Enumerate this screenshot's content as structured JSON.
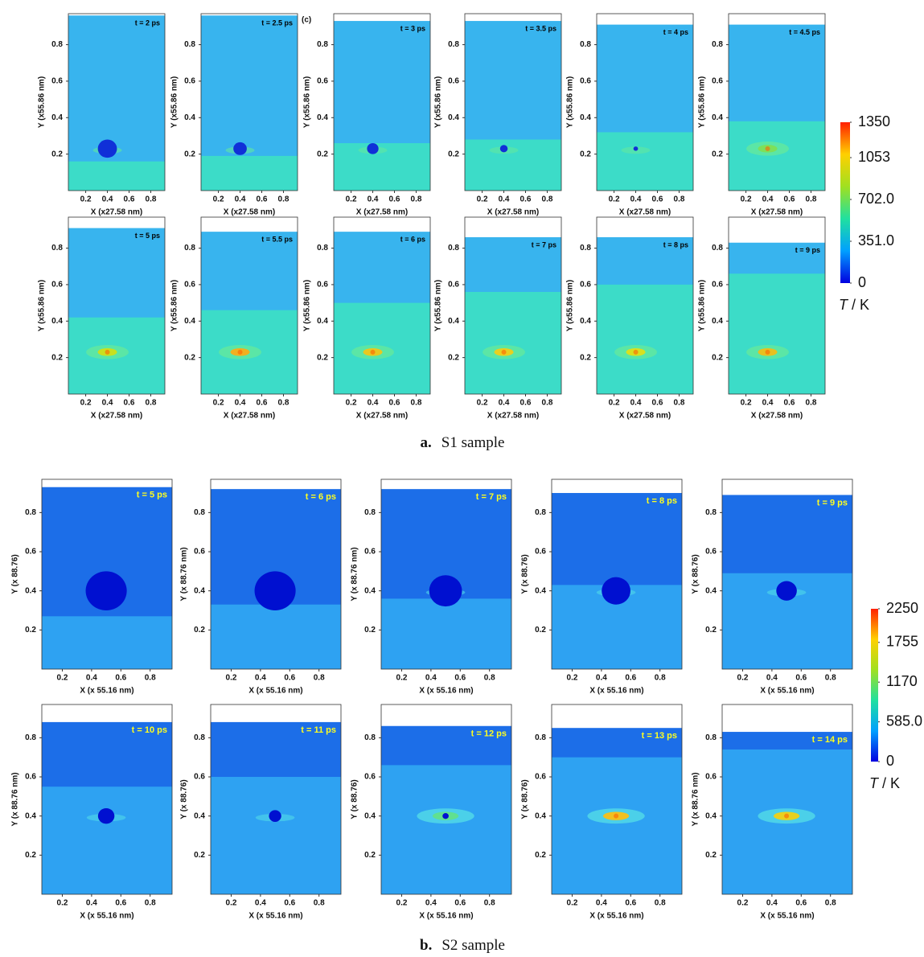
{
  "figures": [
    {
      "label": "a.",
      "name": "S1 sample",
      "xlim": [
        0.04,
        0.93
      ],
      "ylim": [
        0,
        0.97
      ],
      "xticks": [
        0.2,
        0.4,
        0.6,
        0.8
      ],
      "yticks": [
        0.2,
        0.4,
        0.6,
        0.8
      ],
      "center": [
        0.4,
        0.23
      ],
      "time_color": "#000000",
      "colors": {
        "upper": "#38b4ee",
        "lower": "#3cdcc8",
        "void": "#1030d8",
        "halo": "#60e8a0"
      },
      "colorbar": {
        "colors": [
          "#0000e0",
          "#00a0ff",
          "#20e0a0",
          "#a0e020",
          "#ffd000",
          "#ff2000"
        ],
        "clim": [
          0,
          1350
        ],
        "ticks": [
          0,
          {
            "value": 351,
            "label": "351.0"
          },
          {
            "value": 702,
            "label": "702.0"
          },
          1053,
          1350
        ],
        "symbol": "T",
        "unit": " / K"
      },
      "panels": [
        {
          "time": "t = 2 ps",
          "xlabel": "X (x27.58 nm)",
          "ylabel": "Y (x55.86 nm)",
          "top": 0.96,
          "front": 0.16,
          "void": 0.05,
          "hot": null
        },
        {
          "time": "t = 2.5 ps",
          "tag": "(c)",
          "xlabel": "X (x27.58 nm)",
          "ylabel": "Y (x55.86 nm)",
          "top": 0.96,
          "front": 0.19,
          "void": 0.035,
          "hot": null
        },
        {
          "time": "t = 3 ps",
          "xlabel": "X (x27.58 nm)",
          "ylabel": "Y (x55.86 nm)",
          "top": 0.93,
          "front": 0.26,
          "void": 0.03,
          "hot": null
        },
        {
          "time": "t = 3.5 ps",
          "xlabel": "X (x27.58 nm)",
          "ylabel": "Y (x55.86 nm)",
          "top": 0.93,
          "front": 0.28,
          "void": 0.02,
          "hot": null
        },
        {
          "time": "t = 4 ps",
          "xlabel": "X (x27.58 nm)",
          "ylabel": "Y (x55.86 nm)",
          "top": 0.91,
          "front": 0.32,
          "void": 0.012,
          "hot": null
        },
        {
          "time": "t = 4.5 ps",
          "xlabel": "X (x27.58 nm)",
          "ylabel": "Y (x55.86 nm)",
          "top": 0.91,
          "front": 0.38,
          "void": 0,
          "hot": "#7de05a"
        },
        {
          "time": "t = 5 ps",
          "xlabel": "X (x27.58 nm)",
          "ylabel": "Y (x55.86 nm)",
          "top": 0.91,
          "front": 0.42,
          "void": 0,
          "hot": "#c8e020"
        },
        {
          "time": "t = 5.5 ps",
          "xlabel": "X (x27.58 nm)",
          "ylabel": "Y (x55.86 nm)",
          "top": 0.89,
          "front": 0.46,
          "void": 0,
          "hot": "#f0b020"
        },
        {
          "time": "t = 6 ps",
          "xlabel": "X (x27.58 nm)",
          "ylabel": "Y (x55.86 nm)",
          "top": 0.89,
          "front": 0.5,
          "void": 0,
          "hot": "#e8c820"
        },
        {
          "time": "t = 7 ps",
          "xlabel": "X (x27.58 nm)",
          "ylabel": "Y (x55.86 nm)",
          "top": 0.86,
          "front": 0.56,
          "void": 0,
          "hot": "#e8d020"
        },
        {
          "time": "t = 8 ps",
          "xlabel": "X (x27.58 nm)",
          "ylabel": "Y (x55.86 nm)",
          "top": 0.86,
          "front": 0.6,
          "void": 0,
          "hot": "#d8e020"
        },
        {
          "time": "t = 9 ps",
          "xlabel": "X (x27.58 nm)",
          "ylabel": "Y (x55.86 nm)",
          "top": 0.83,
          "front": 0.66,
          "void": 0,
          "hot": "#e8c020"
        }
      ]
    },
    {
      "label": "b.",
      "name": "S2 sample",
      "xlim": [
        0.06,
        0.95
      ],
      "ylim": [
        0,
        0.97
      ],
      "xticks": [
        0.2,
        0.4,
        0.6,
        0.8
      ],
      "yticks": [
        0.2,
        0.4,
        0.6,
        0.8
      ],
      "center": [
        0.5,
        0.4
      ],
      "time_color": "#ffff20",
      "colors": {
        "upper": "#1c6ee8",
        "lower": "#2ea2f2",
        "void": "#0010d0",
        "halo": "#50d8e8"
      },
      "colorbar": {
        "colors": [
          "#0000e0",
          "#00a0ff",
          "#20e0a0",
          "#a0e020",
          "#ffd000",
          "#ff2000"
        ],
        "clim": [
          0,
          2250
        ],
        "ticks": [
          0,
          {
            "value": 585,
            "label": "585.0"
          },
          1170,
          1755,
          2250
        ],
        "symbol": "T",
        "unit": " / K"
      },
      "panels": [
        {
          "time": "t = 5 ps",
          "xlabel": "X (x 55.16 nm)",
          "ylabel": "Y (x 88.76)",
          "top": 0.93,
          "front": 0.27,
          "void": 0.1,
          "hot": null
        },
        {
          "time": "t = 6 ps",
          "xlabel": "X (x 55.16 nm)",
          "ylabel": "Y (x 88.76 nm)",
          "top": 0.92,
          "front": 0.33,
          "void": 0.1,
          "hot": null
        },
        {
          "time": "t = 7 ps",
          "xlabel": "X (x 55.16 nm)",
          "ylabel": "Y (x 88.76 nm)",
          "top": 0.92,
          "front": 0.36,
          "void": 0.08,
          "hot": null
        },
        {
          "time": "t = 8 ps",
          "xlabel": "X (x 55.16 nm)",
          "ylabel": "Y (x 88.76)",
          "top": 0.9,
          "front": 0.43,
          "void": 0.07,
          "hot": null
        },
        {
          "time": "t = 9 ps",
          "xlabel": "X (x 55.16 nm)",
          "ylabel": "Y (x 88.76)",
          "top": 0.89,
          "front": 0.49,
          "void": 0.05,
          "hot": null
        },
        {
          "time": "t = 10 ps",
          "xlabel": "X (x 55.16 nm)",
          "ylabel": "Y (x 88.76 nm)",
          "top": 0.88,
          "front": 0.55,
          "void": 0.04,
          "hot": null
        },
        {
          "time": "t = 11 ps",
          "xlabel": "X (x 55.16 nm)",
          "ylabel": "Y (x 88.76)",
          "top": 0.88,
          "front": 0.6,
          "void": 0.03,
          "hot": null
        },
        {
          "time": "t = 12 ps",
          "xlabel": "X (x 55.16 nm)",
          "ylabel": "Y (x 88.76)",
          "top": 0.86,
          "front": 0.66,
          "void": 0.015,
          "hot": "#60e090"
        },
        {
          "time": "t = 13 ps",
          "xlabel": "X (x 55.16 nm)",
          "ylabel": "Y (x 88.76)",
          "top": 0.85,
          "front": 0.7,
          "void": 0,
          "hot": "#f0c020"
        },
        {
          "time": "t = 14 ps",
          "xlabel": "X (x 55.16 nm)",
          "ylabel": "Y (x 88.76 nm)",
          "top": 0.83,
          "front": 0.74,
          "void": 0,
          "hot": "#e8d020"
        }
      ]
    }
  ]
}
